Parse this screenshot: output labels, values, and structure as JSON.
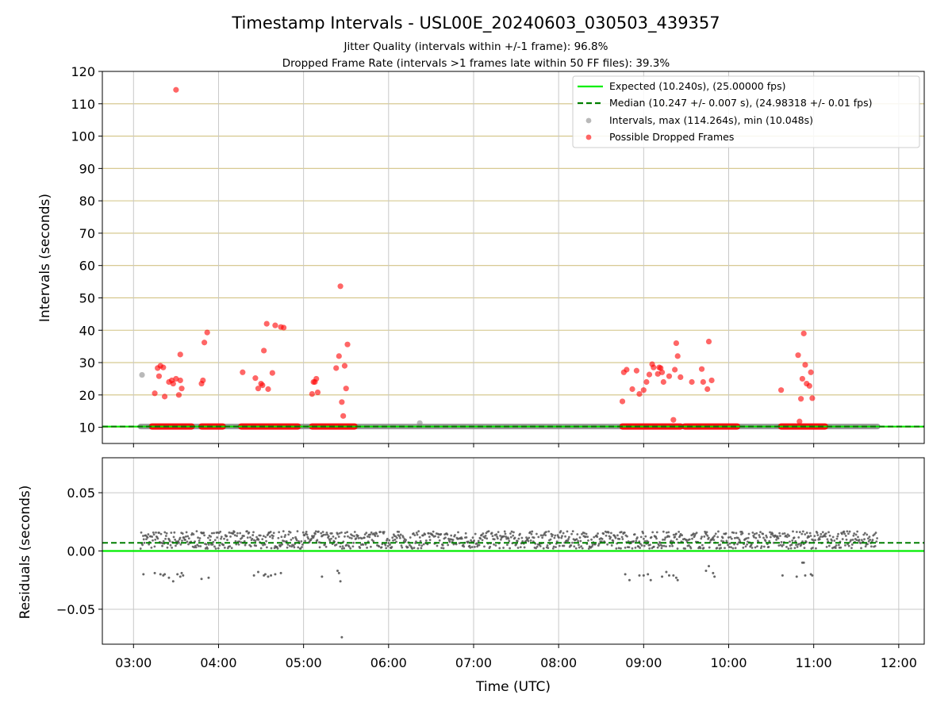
{
  "figure": {
    "title": "Timestamp Intervals - USL00E_20240603_030503_439357",
    "subtitle_1": "Jitter Quality (intervals within +/-1 frame): 96.8%",
    "subtitle_2": "Dropped Frame Rate (intervals >1 frames late within 50 FF files): 39.3%",
    "colors": {
      "expected": "#00ee00",
      "median": "#007f00",
      "intervals": "#808080",
      "dropped": "#ff0000",
      "y_grid_top": "#d2c384",
      "grid": "#c8c8c8",
      "residual_points": "#555555"
    }
  },
  "chart_data": [
    {
      "type": "scatter",
      "panel": "intervals",
      "xlabel": "",
      "ylabel": "Intervals (seconds)",
      "xlim": [
        "02:38",
        "12:18"
      ],
      "ylim": [
        5,
        120
      ],
      "x_ticks": [
        "03:00",
        "04:00",
        "05:00",
        "06:00",
        "07:00",
        "08:00",
        "09:00",
        "10:00",
        "11:00",
        "12:00"
      ],
      "y_ticks": [
        10,
        20,
        30,
        40,
        50,
        60,
        70,
        80,
        90,
        100,
        110,
        120
      ],
      "grid": true,
      "legend_position": "top-right",
      "legend": [
        "Expected (10.240s), (25.00000 fps)",
        "Median (10.247 +/- 0.007 s), (24.98318 +/- 0.01 fps)",
        "Intervals, max (114.264s), min (10.048s)",
        "Possible Dropped Frames"
      ],
      "expected_interval": 10.24,
      "median_interval": 10.247,
      "interval_max": 114.264,
      "interval_min": 10.048,
      "baseline_range": [
        "03:05",
        "11:45"
      ],
      "intervals_outliers": [
        {
          "time": "03:06",
          "value": 26.2
        },
        {
          "time": "06:22",
          "value": 11.3
        }
      ],
      "dropped_frames": [
        {
          "time": "03:15",
          "value": 20.5
        },
        {
          "time": "03:17",
          "value": 28.3
        },
        {
          "time": "03:18",
          "value": 25.8
        },
        {
          "time": "03:19",
          "value": 29.0
        },
        {
          "time": "03:21",
          "value": 28.5
        },
        {
          "time": "03:22",
          "value": 19.5
        },
        {
          "time": "03:25",
          "value": 24.0
        },
        {
          "time": "03:27",
          "value": 24.5
        },
        {
          "time": "03:28",
          "value": 23.5
        },
        {
          "time": "03:30",
          "value": 114.3
        },
        {
          "time": "03:30",
          "value": 25.0
        },
        {
          "time": "03:32",
          "value": 20.0
        },
        {
          "time": "03:33",
          "value": 32.5
        },
        {
          "time": "03:33",
          "value": 24.5
        },
        {
          "time": "03:34",
          "value": 22.0
        },
        {
          "time": "03:48",
          "value": 23.5
        },
        {
          "time": "03:49",
          "value": 24.5
        },
        {
          "time": "03:50",
          "value": 36.2
        },
        {
          "time": "03:52",
          "value": 39.3
        },
        {
          "time": "04:17",
          "value": 27.0
        },
        {
          "time": "04:26",
          "value": 25.2
        },
        {
          "time": "04:28",
          "value": 22.0
        },
        {
          "time": "04:30",
          "value": 23.5
        },
        {
          "time": "04:31",
          "value": 23.0
        },
        {
          "time": "04:32",
          "value": 33.7
        },
        {
          "time": "04:34",
          "value": 42.0
        },
        {
          "time": "04:35",
          "value": 21.8
        },
        {
          "time": "04:38",
          "value": 26.8
        },
        {
          "time": "04:40",
          "value": 41.5
        },
        {
          "time": "04:44",
          "value": 41.0
        },
        {
          "time": "04:46",
          "value": 40.8
        },
        {
          "time": "05:06",
          "value": 20.3
        },
        {
          "time": "05:07",
          "value": 24.0
        },
        {
          "time": "05:08",
          "value": 24.0
        },
        {
          "time": "05:09",
          "value": 25.0
        },
        {
          "time": "05:10",
          "value": 20.8
        },
        {
          "time": "05:23",
          "value": 28.3
        },
        {
          "time": "05:25",
          "value": 32.0
        },
        {
          "time": "05:26",
          "value": 53.6
        },
        {
          "time": "05:27",
          "value": 17.8
        },
        {
          "time": "05:28",
          "value": 13.5
        },
        {
          "time": "05:29",
          "value": 29.0
        },
        {
          "time": "05:30",
          "value": 22.0
        },
        {
          "time": "05:31",
          "value": 35.6
        },
        {
          "time": "08:45",
          "value": 18.0
        },
        {
          "time": "08:46",
          "value": 27.0
        },
        {
          "time": "08:48",
          "value": 27.8
        },
        {
          "time": "08:52",
          "value": 21.8
        },
        {
          "time": "08:55",
          "value": 27.5
        },
        {
          "time": "08:57",
          "value": 20.3
        },
        {
          "time": "09:00",
          "value": 21.5
        },
        {
          "time": "09:02",
          "value": 24.0
        },
        {
          "time": "09:04",
          "value": 26.3
        },
        {
          "time": "09:06",
          "value": 29.5
        },
        {
          "time": "09:07",
          "value": 28.5
        },
        {
          "time": "09:10",
          "value": 26.5
        },
        {
          "time": "09:11",
          "value": 28.5
        },
        {
          "time": "09:12",
          "value": 28.3
        },
        {
          "time": "09:13",
          "value": 27.0
        },
        {
          "time": "09:14",
          "value": 24.0
        },
        {
          "time": "09:18",
          "value": 25.8
        },
        {
          "time": "09:21",
          "value": 12.3
        },
        {
          "time": "09:22",
          "value": 27.8
        },
        {
          "time": "09:23",
          "value": 36.0
        },
        {
          "time": "09:24",
          "value": 32.0
        },
        {
          "time": "09:26",
          "value": 25.5
        },
        {
          "time": "09:34",
          "value": 24.0
        },
        {
          "time": "09:41",
          "value": 28.0
        },
        {
          "time": "09:42",
          "value": 24.0
        },
        {
          "time": "09:45",
          "value": 21.8
        },
        {
          "time": "09:46",
          "value": 36.5
        },
        {
          "time": "09:48",
          "value": 24.5
        },
        {
          "time": "10:37",
          "value": 21.5
        },
        {
          "time": "10:49",
          "value": 32.3
        },
        {
          "time": "10:50",
          "value": 11.8
        },
        {
          "time": "10:51",
          "value": 18.8
        },
        {
          "time": "10:52",
          "value": 25.0
        },
        {
          "time": "10:53",
          "value": 39.0
        },
        {
          "time": "10:54",
          "value": 29.3
        },
        {
          "time": "10:55",
          "value": 23.5
        },
        {
          "time": "10:57",
          "value": 22.8
        },
        {
          "time": "10:58",
          "value": 27.0
        },
        {
          "time": "10:59",
          "value": 19.0
        }
      ],
      "dropped_frame_bands_at_expected": [
        [
          "03:13",
          "03:41"
        ],
        [
          "03:48",
          "04:03"
        ],
        [
          "04:16",
          "04:56"
        ],
        [
          "05:06",
          "05:36"
        ],
        [
          "08:45",
          "09:26"
        ],
        [
          "09:29",
          "10:06"
        ],
        [
          "10:37",
          "11:08"
        ]
      ]
    },
    {
      "type": "scatter",
      "panel": "residuals",
      "xlabel": "Time (UTC)",
      "ylabel": "Residuals (seconds)",
      "xlim": [
        "02:38",
        "12:18"
      ],
      "ylim": [
        -0.08,
        0.08
      ],
      "y_ticks": [
        0.05,
        0.0,
        -0.05
      ],
      "y_tick_labels": [
        "0.05",
        "0.00",
        "−0.05"
      ],
      "x_ticks": [
        "03:00",
        "04:00",
        "05:00",
        "06:00",
        "07:00",
        "08:00",
        "09:00",
        "10:00",
        "11:00",
        "12:00"
      ],
      "grid": true,
      "expected_residual": 0.0,
      "median_residual": 0.007,
      "residual_range": [
        0.002,
        0.017
      ],
      "residual_time_span": [
        "03:05",
        "11:45"
      ],
      "negative_outliers": [
        {
          "time": "03:07",
          "value": -0.02
        },
        {
          "time": "03:15",
          "value": -0.019
        },
        {
          "time": "03:19",
          "value": -0.02
        },
        {
          "time": "03:21",
          "value": -0.021
        },
        {
          "time": "03:22",
          "value": -0.02
        },
        {
          "time": "03:25",
          "value": -0.023
        },
        {
          "time": "03:28",
          "value": -0.026
        },
        {
          "time": "03:31",
          "value": -0.02
        },
        {
          "time": "03:33",
          "value": -0.022
        },
        {
          "time": "03:34",
          "value": -0.019
        },
        {
          "time": "03:35",
          "value": -0.021
        },
        {
          "time": "03:48",
          "value": -0.024
        },
        {
          "time": "03:53",
          "value": -0.023
        },
        {
          "time": "04:25",
          "value": -0.021
        },
        {
          "time": "04:28",
          "value": -0.018
        },
        {
          "time": "04:32",
          "value": -0.021
        },
        {
          "time": "04:33",
          "value": -0.02
        },
        {
          "time": "04:35",
          "value": -0.022
        },
        {
          "time": "04:37",
          "value": -0.021
        },
        {
          "time": "04:40",
          "value": -0.02
        },
        {
          "time": "04:44",
          "value": -0.019
        },
        {
          "time": "05:13",
          "value": -0.022
        },
        {
          "time": "05:24",
          "value": -0.017
        },
        {
          "time": "05:25",
          "value": -0.019
        },
        {
          "time": "05:26",
          "value": -0.026
        },
        {
          "time": "05:27",
          "value": -0.074
        },
        {
          "time": "08:47",
          "value": -0.02
        },
        {
          "time": "08:50",
          "value": -0.025
        },
        {
          "time": "08:57",
          "value": -0.021
        },
        {
          "time": "09:00",
          "value": -0.021
        },
        {
          "time": "09:03",
          "value": -0.02
        },
        {
          "time": "09:05",
          "value": -0.025
        },
        {
          "time": "09:13",
          "value": -0.022
        },
        {
          "time": "09:16",
          "value": -0.018
        },
        {
          "time": "09:18",
          "value": -0.021
        },
        {
          "time": "09:21",
          "value": -0.021
        },
        {
          "time": "09:23",
          "value": -0.023
        },
        {
          "time": "09:24",
          "value": -0.025
        },
        {
          "time": "09:44",
          "value": -0.017
        },
        {
          "time": "09:46",
          "value": -0.013
        },
        {
          "time": "09:49",
          "value": -0.019
        },
        {
          "time": "09:50",
          "value": -0.022
        },
        {
          "time": "10:38",
          "value": -0.021
        },
        {
          "time": "10:48",
          "value": -0.022
        },
        {
          "time": "10:52",
          "value": -0.01
        },
        {
          "time": "10:53",
          "value": -0.01
        },
        {
          "time": "10:54",
          "value": -0.021
        },
        {
          "time": "10:58",
          "value": -0.02
        },
        {
          "time": "10:59",
          "value": -0.021
        }
      ]
    }
  ]
}
